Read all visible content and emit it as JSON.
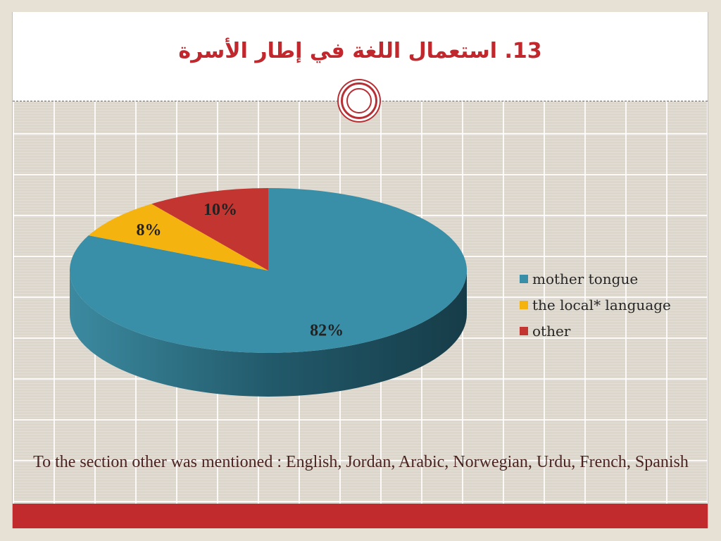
{
  "slide": {
    "title": "13. استعمال اللغة في إطار الأسرة",
    "note": "To the section other was mentioned : English, Jordan, Arabic, Norwegian, Urdu, French, Spanish"
  },
  "chart_data": {
    "type": "pie",
    "style": "3d",
    "title": "",
    "legend_position": "right",
    "slices": [
      {
        "name": "mother tongue",
        "value": 82,
        "label": "82%",
        "color": "#3a8fa8"
      },
      {
        "name": "the local* language",
        "value": 8,
        "label": "8%",
        "color": "#f5b30f"
      },
      {
        "name": "other",
        "value": 10,
        "label": "10%",
        "color": "#c23531"
      }
    ]
  }
}
